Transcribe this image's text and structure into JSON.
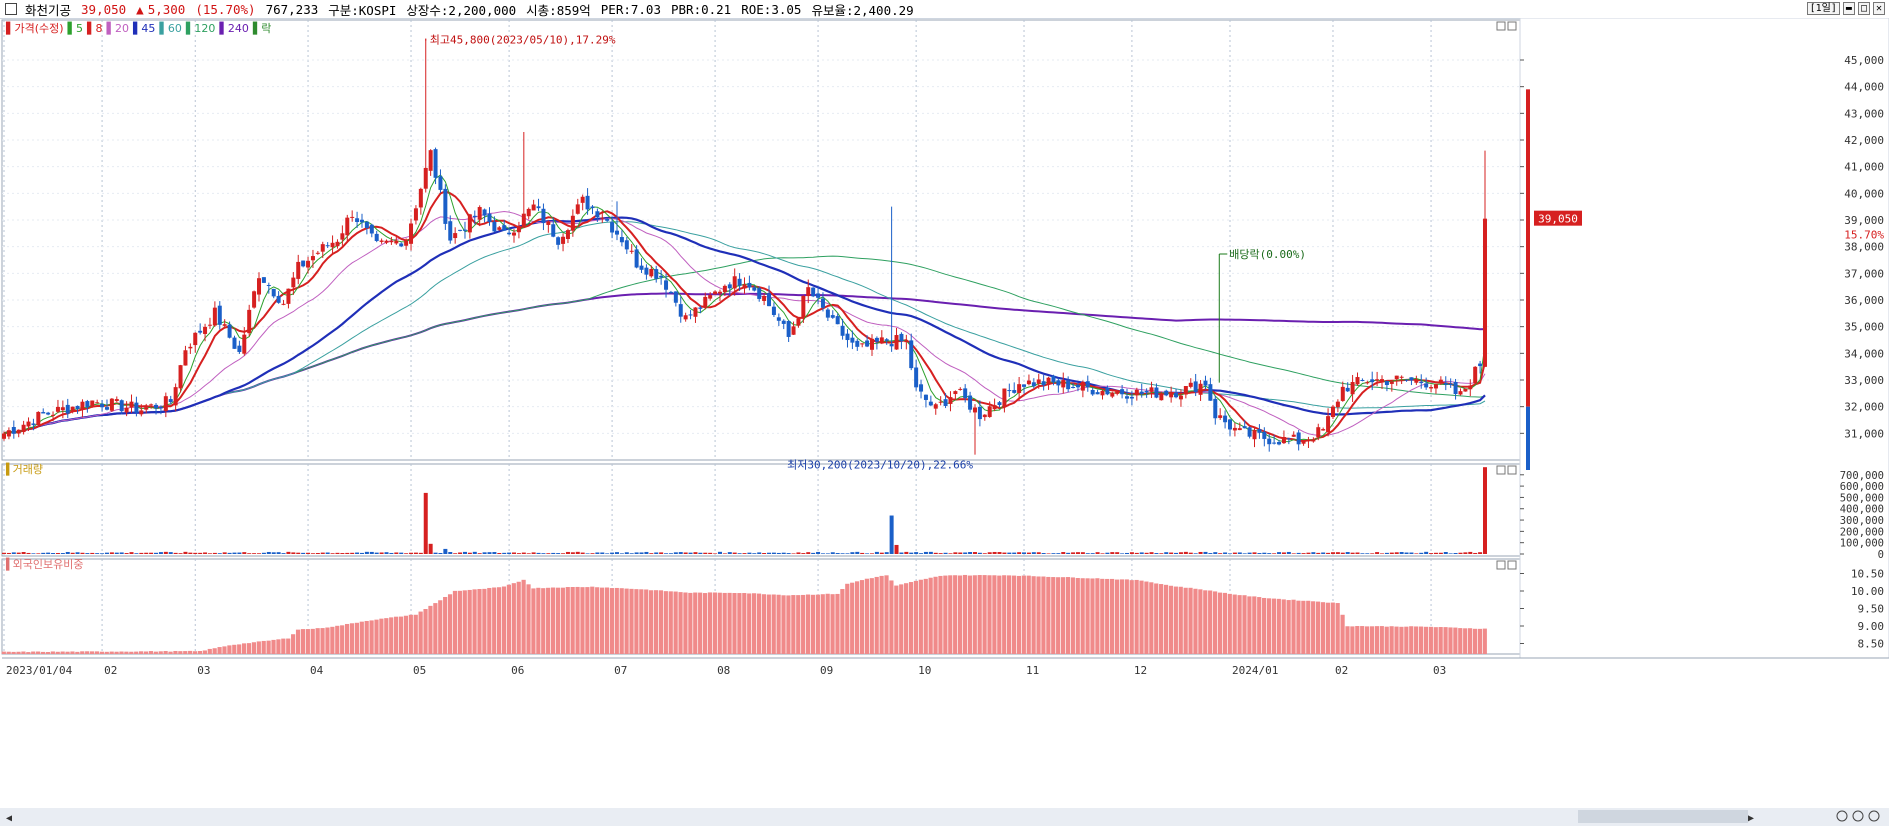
{
  "header": {
    "name": "화천기공",
    "price": "39,050",
    "change_arrow": "▲",
    "change": "5,300",
    "change_pct": "(15.70%)",
    "volume": "767,233",
    "market": "구분:KOSPI",
    "shares": "상장수:2,200,000",
    "mcap": "시총:859억",
    "per": "PER:7.03",
    "pbr": "PBR:0.21",
    "roe": "ROE:3.05",
    "float": "유보율:2,400.29",
    "period": "[1일]"
  },
  "colors": {
    "up": "#d62020",
    "down": "#1a5fc8",
    "ma5": "#2ca02c",
    "ma8": "#d62020",
    "ma20": "#c060c0",
    "ma45": "#1f2fb8",
    "ma60": "#3aa0a0",
    "ma120": "#2ea060",
    "ma240": "#6a1fb0",
    "foreign": "#f08a8a"
  },
  "chart_data": [
    {
      "type": "candlestick",
      "title": "가격(수정)",
      "legend": [
        "5",
        "8",
        "20",
        "45",
        "60",
        "120",
        "240",
        "락"
      ],
      "ylim": [
        30000,
        46500
      ],
      "y_ticks": [
        "31,000",
        "32,000",
        "33,000",
        "34,000",
        "35,000",
        "36,000",
        "37,000",
        "38,000",
        "39,000",
        "40,000",
        "41,000",
        "42,000",
        "43,000",
        "44,000",
        "45,000"
      ],
      "x_labels": [
        "2023/01/04",
        "02",
        "03",
        "04",
        "05",
        "06",
        "07",
        "08",
        "09",
        "10",
        "11",
        "12",
        "2024/01",
        "02",
        "03"
      ],
      "x_label_days": [
        0,
        20,
        39,
        62,
        83,
        103,
        124,
        145,
        166,
        186,
        208,
        230,
        250,
        271,
        291
      ],
      "n_days": 303,
      "close_points": [
        [
          0,
          31000
        ],
        [
          8,
          31700
        ],
        [
          18,
          32200
        ],
        [
          28,
          31900
        ],
        [
          34,
          32200
        ],
        [
          37,
          34200
        ],
        [
          43,
          35500
        ],
        [
          48,
          34000
        ],
        [
          52,
          37000
        ],
        [
          57,
          35900
        ],
        [
          60,
          37200
        ],
        [
          64,
          37800
        ],
        [
          68,
          38300
        ],
        [
          71,
          39300
        ],
        [
          76,
          38000
        ],
        [
          82,
          38300
        ],
        [
          87,
          41500
        ],
        [
          91,
          38300
        ],
        [
          97,
          39300
        ],
        [
          102,
          38400
        ],
        [
          108,
          39500
        ],
        [
          113,
          38300
        ],
        [
          118,
          39700
        ],
        [
          122,
          39200
        ],
        [
          126,
          38300
        ],
        [
          129,
          37400
        ],
        [
          134,
          36900
        ],
        [
          139,
          35300
        ],
        [
          143,
          35900
        ],
        [
          147,
          36600
        ],
        [
          151,
          36800
        ],
        [
          155,
          36100
        ],
        [
          160,
          34600
        ],
        [
          164,
          36400
        ],
        [
          169,
          35100
        ],
        [
          174,
          34100
        ],
        [
          180,
          34500
        ],
        [
          184,
          34400
        ],
        [
          186,
          32600
        ],
        [
          190,
          31900
        ],
        [
          194,
          32600
        ],
        [
          199,
          31700
        ],
        [
          203,
          32300
        ],
        [
          207,
          32900
        ],
        [
          212,
          32900
        ],
        [
          218,
          32800
        ],
        [
          224,
          32600
        ],
        [
          232,
          32500
        ],
        [
          240,
          32600
        ],
        [
          245,
          32900
        ],
        [
          247,
          31700
        ],
        [
          252,
          31000
        ],
        [
          258,
          30800
        ],
        [
          264,
          30700
        ],
        [
          269,
          31100
        ],
        [
          273,
          32700
        ],
        [
          278,
          33000
        ],
        [
          285,
          33000
        ],
        [
          292,
          32900
        ],
        [
          297,
          32400
        ],
        [
          301,
          33600
        ],
        [
          302,
          39050
        ]
      ],
      "annotations": [
        {
          "text": "최고45,800(2023/05/10),17.29%",
          "day": 86,
          "value": 45800
        },
        {
          "text": "최저30,200(2023/10/20),22.66%",
          "day": 198,
          "value": 30200
        },
        {
          "text": "배당락(0.00%)",
          "day": 247,
          "value": 37800
        }
      ],
      "last_price_label": "39,050",
      "last_pct_label": "15.70%"
    },
    {
      "type": "bar",
      "title": "거래량",
      "ylim": [
        0,
        760000
      ],
      "y_ticks": [
        "0",
        "100,000",
        "200,000",
        "300,000",
        "400,000",
        "500,000",
        "600,000",
        "700,000"
      ],
      "spikes": [
        [
          86,
          540000
        ],
        [
          87,
          90000
        ],
        [
          90,
          45000
        ],
        [
          181,
          340000
        ],
        [
          182,
          80000
        ],
        [
          302,
          767233
        ]
      ],
      "base_volume": 12000
    },
    {
      "type": "bar",
      "title": "외국인보유비중",
      "ylim": [
        8.2,
        10.8
      ],
      "y_ticks": [
        "8.50",
        "9.00",
        "9.50",
        "10.00",
        "10.50"
      ],
      "points": [
        [
          0,
          8.26
        ],
        [
          40,
          8.28
        ],
        [
          46,
          8.45
        ],
        [
          52,
          8.55
        ],
        [
          58,
          8.65
        ],
        [
          60,
          8.9
        ],
        [
          64,
          8.93
        ],
        [
          68,
          9.0
        ],
        [
          74,
          9.15
        ],
        [
          84,
          9.33
        ],
        [
          88,
          9.65
        ],
        [
          92,
          10.0
        ],
        [
          97,
          10.05
        ],
        [
          102,
          10.12
        ],
        [
          106,
          10.32
        ],
        [
          108,
          10.08
        ],
        [
          112,
          10.1
        ],
        [
          120,
          10.12
        ],
        [
          130,
          10.05
        ],
        [
          140,
          9.95
        ],
        [
          150,
          9.95
        ],
        [
          160,
          9.88
        ],
        [
          170,
          9.92
        ],
        [
          172,
          10.2
        ],
        [
          176,
          10.35
        ],
        [
          180,
          10.45
        ],
        [
          182,
          10.15
        ],
        [
          185,
          10.25
        ],
        [
          188,
          10.35
        ],
        [
          192,
          10.45
        ],
        [
          205,
          10.45
        ],
        [
          215,
          10.4
        ],
        [
          225,
          10.35
        ],
        [
          232,
          10.3
        ],
        [
          238,
          10.15
        ],
        [
          244,
          10.05
        ],
        [
          250,
          9.92
        ],
        [
          256,
          9.82
        ],
        [
          262,
          9.75
        ],
        [
          268,
          9.7
        ],
        [
          272,
          9.65
        ],
        [
          274,
          9.0
        ],
        [
          290,
          8.98
        ],
        [
          302,
          8.92
        ]
      ]
    }
  ],
  "nav": {
    "left_arrow": "◀",
    "right_arrow": "▶"
  }
}
